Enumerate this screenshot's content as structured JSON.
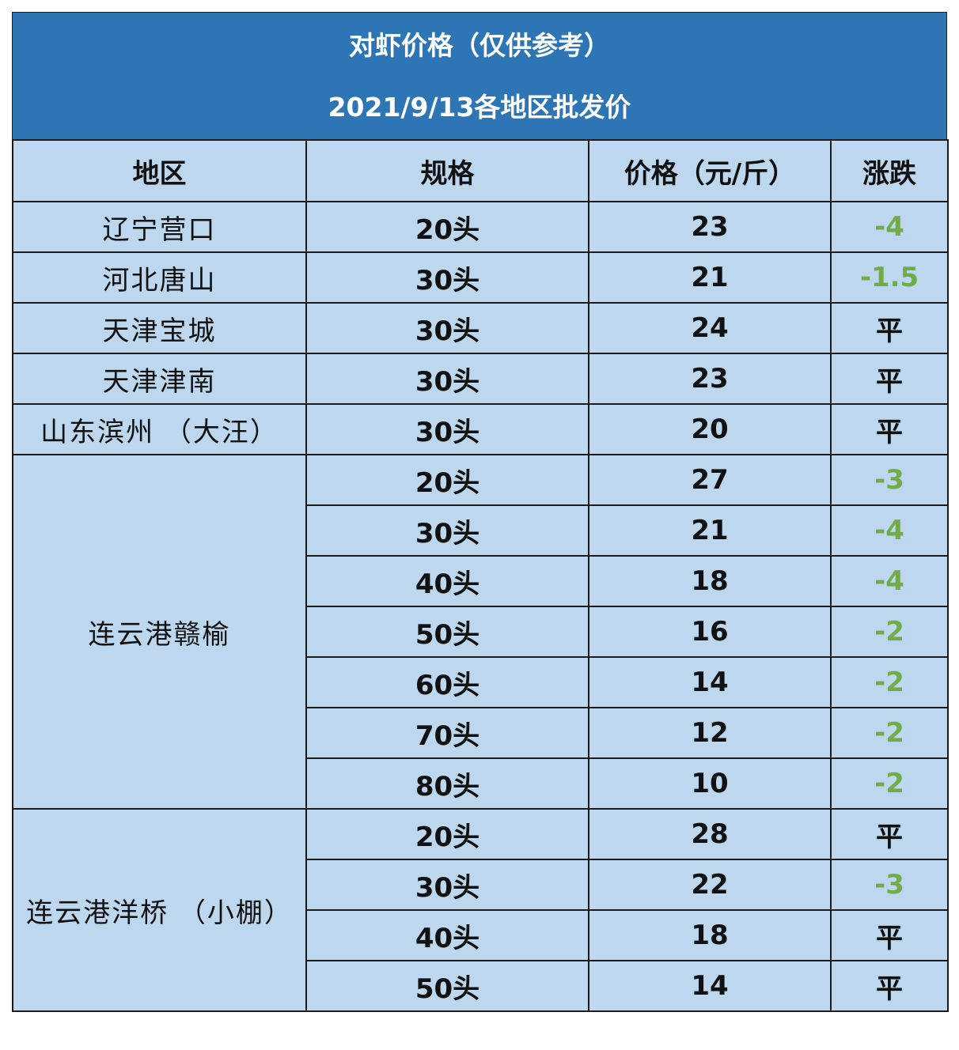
{
  "title": {
    "line1": "对虾价格（仅供参考）",
    "line2": "2021/9/13各地区批发价"
  },
  "headers": {
    "region": "地区",
    "spec": "规格",
    "price": "价格（元/斤）",
    "change": "涨跌"
  },
  "colors": {
    "banner": "#2e75b6",
    "cell": "#bdd7ee",
    "down": "#70ad47",
    "flat": "#111111"
  },
  "groups": [
    {
      "region": "辽宁营口",
      "rows": [
        {
          "spec": "20头",
          "price": "23",
          "change": "-4"
        }
      ]
    },
    {
      "region": "河北唐山",
      "rows": [
        {
          "spec": "30头",
          "price": "21",
          "change": "-1.5"
        }
      ]
    },
    {
      "region": "天津宝城",
      "rows": [
        {
          "spec": "30头",
          "price": "24",
          "change": "平"
        }
      ]
    },
    {
      "region": "天津津南",
      "rows": [
        {
          "spec": "30头",
          "price": "23",
          "change": "平"
        }
      ]
    },
    {
      "region": "山东滨州 （大汪）",
      "rows": [
        {
          "spec": "30头",
          "price": "20",
          "change": "平"
        }
      ]
    },
    {
      "region": "连云港赣榆",
      "rows": [
        {
          "spec": "20头",
          "price": "27",
          "change": "-3"
        },
        {
          "spec": "30头",
          "price": "21",
          "change": "-4"
        },
        {
          "spec": "40头",
          "price": "18",
          "change": "-4"
        },
        {
          "spec": "50头",
          "price": "16",
          "change": "-2"
        },
        {
          "spec": "60头",
          "price": "14",
          "change": "-2"
        },
        {
          "spec": "70头",
          "price": "12",
          "change": "-2"
        },
        {
          "spec": "80头",
          "price": "10",
          "change": "-2"
        }
      ]
    },
    {
      "region": "连云港洋桥 （小棚）",
      "rows": [
        {
          "spec": "20头",
          "price": "28",
          "change": "平"
        },
        {
          "spec": "30头",
          "price": "22",
          "change": "-3"
        },
        {
          "spec": "40头",
          "price": "18",
          "change": "平"
        },
        {
          "spec": "50头",
          "price": "14",
          "change": "平"
        }
      ]
    }
  ]
}
